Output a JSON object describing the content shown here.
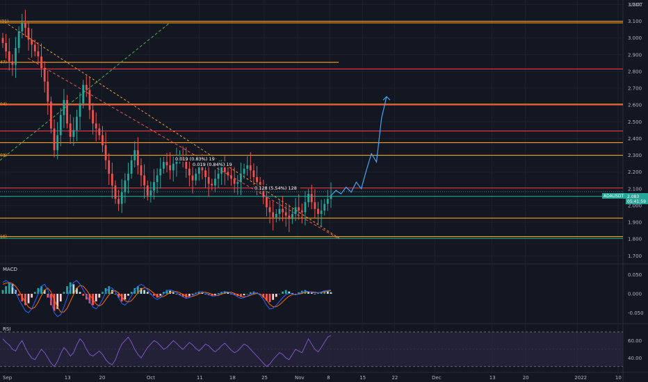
{
  "chart_data": {
    "type": "line",
    "price_axis": {
      "unit": "USDT",
      "ticks": [
        "3.200",
        "3.100",
        "3.000",
        "2.900",
        "2.800",
        "2.700",
        "2.600",
        "2.500",
        "2.400",
        "2.300",
        "2.200",
        "2.100",
        "2.000",
        "1.900",
        "1.800",
        "1.700"
      ],
      "ylim": [
        1.66,
        3.21
      ]
    },
    "time_axis": {
      "ticks": [
        "Sep",
        "13",
        "20",
        "Oct",
        "11",
        "18",
        "25",
        "Nov",
        "8",
        "15",
        "22",
        "Dec",
        "13",
        "20",
        "2022",
        "10"
      ]
    },
    "price_series": {
      "name": "ADAUSDT",
      "last_label": "ADAUSDT",
      "last_value": "2.083",
      "countdown": "05:41:59",
      "values": [
        2.97,
        2.92,
        2.86,
        2.84,
        2.94,
        3.04,
        3.09,
        3.06,
        2.99,
        2.96,
        2.92,
        2.89,
        2.82,
        2.74,
        2.62,
        2.46,
        2.33,
        2.42,
        2.54,
        2.63,
        2.49,
        2.41,
        2.45,
        2.53,
        2.61,
        2.72,
        2.69,
        2.57,
        2.49,
        2.46,
        2.42,
        2.36,
        2.27,
        2.19,
        2.12,
        2.04,
        2.01,
        2.08,
        2.15,
        2.19,
        2.27,
        2.33,
        2.24,
        2.18,
        2.12,
        2.06,
        2.09,
        2.14,
        2.18,
        2.22,
        2.26,
        2.24,
        2.21,
        2.25,
        2.28,
        2.3,
        2.27,
        2.22,
        2.18,
        2.15,
        2.19,
        2.23,
        2.21,
        2.17,
        2.13,
        2.12,
        2.16,
        2.19,
        2.23,
        2.2,
        2.18,
        2.16,
        2.13,
        2.14,
        2.19,
        2.22,
        2.24,
        2.21,
        2.17,
        2.14,
        2.1,
        2.05,
        1.99,
        1.96,
        1.93,
        1.95,
        1.98,
        1.96,
        1.94,
        1.92,
        1.95,
        1.99,
        1.97,
        1.96,
        2.02,
        2.07,
        2.02,
        1.98,
        1.95,
        1.97,
        2.01,
        2.04,
        2.06
      ],
      "projection": [
        2.06,
        2.09,
        2.07,
        2.11,
        2.08,
        2.14,
        2.1,
        2.21,
        2.31,
        2.26,
        2.52,
        2.65
      ]
    },
    "horizontal_levels": [
      {
        "value": 3.1,
        "color": "#f7a21b",
        "tag": "(91)"
      },
      {
        "value": 3.09,
        "color": "#f7a21b",
        "tag": ""
      },
      {
        "value": 2.855,
        "color": "#f7a21b",
        "tag": "47)"
      },
      {
        "value": 2.815,
        "color": "#f23645",
        "tag": ""
      },
      {
        "value": 2.605,
        "color": "#f7a21b",
        "tag": "04)"
      },
      {
        "value": 2.6,
        "color": "#f23645",
        "tag": ""
      },
      {
        "value": 2.445,
        "color": "#f23645",
        "tag": ""
      },
      {
        "value": 2.375,
        "color": "#f7a21b",
        "tag": ""
      },
      {
        "value": 2.3,
        "color": "#f7a21b",
        "tag": "03)"
      },
      {
        "value": 2.105,
        "color": "#f23645",
        "tag": ""
      },
      {
        "value": 2.055,
        "color": "#22ab94",
        "tag": ""
      },
      {
        "value": 1.925,
        "color": "#f7a21b",
        "tag": ""
      },
      {
        "value": 1.815,
        "color": "#f7a21b",
        "tag": "16)"
      },
      {
        "value": 1.805,
        "color": "#22ab94",
        "tag": ""
      }
    ],
    "measure_labels": [
      {
        "text": "0.019 (0.83%) 19"
      },
      {
        "text": "0.019 (0.84%) 19"
      },
      {
        "text": "0.128 (5.54%) 128"
      }
    ],
    "macd": {
      "label": "MACD",
      "ticks": [
        "0.050",
        "0.000",
        "-0.050"
      ],
      "ylim": [
        -0.075,
        0.075
      ],
      "histogram": [
        0.01,
        0.02,
        0.03,
        0.025,
        0.01,
        -0.005,
        -0.02,
        -0.03,
        -0.025,
        -0.01,
        0.005,
        0.015,
        0.02,
        0.01,
        -0.01,
        -0.03,
        -0.045,
        -0.04,
        -0.02,
        0.005,
        0.02,
        0.03,
        0.025,
        0.015,
        0.005,
        -0.005,
        -0.015,
        -0.025,
        -0.03,
        -0.02,
        -0.01,
        0.005,
        0.015,
        0.02,
        0.01,
        0.0,
        -0.01,
        -0.02,
        -0.015,
        -0.005,
        0.005,
        0.015,
        0.02,
        0.015,
        0.01,
        0.005,
        0.0,
        -0.005,
        -0.01,
        -0.005,
        0.005,
        0.01,
        0.008,
        0.004,
        0.0,
        -0.004,
        -0.008,
        -0.01,
        -0.006,
        -0.002,
        0.003,
        0.006,
        0.004,
        0.0,
        -0.004,
        -0.006,
        -0.003,
        0.002,
        0.005,
        0.007,
        0.004,
        0.0,
        -0.003,
        -0.006,
        -0.008,
        -0.004,
        0.0,
        0.004,
        0.006,
        0.003,
        -0.002,
        -0.01,
        -0.018,
        -0.022,
        -0.016,
        -0.008,
        0.0,
        0.006,
        0.01,
        0.006,
        0.002,
        -0.002,
        0.004,
        0.008,
        0.01,
        0.006,
        0.003,
        0.0,
        0.002,
        0.005,
        0.007,
        0.006,
        0.004
      ],
      "macd_line": [
        0.03,
        0.035,
        0.03,
        0.02,
        0.005,
        -0.015,
        -0.03,
        -0.045,
        -0.05,
        -0.04,
        -0.02,
        0.0,
        0.02,
        0.025,
        0.01,
        -0.02,
        -0.05,
        -0.06,
        -0.055,
        -0.035,
        -0.01,
        0.015,
        0.03,
        0.035,
        0.025,
        0.01,
        -0.005,
        -0.02,
        -0.035,
        -0.04,
        -0.03,
        -0.015,
        0.005,
        0.015,
        0.015,
        0.005,
        -0.01,
        -0.025,
        -0.03,
        -0.02,
        -0.005,
        0.01,
        0.02,
        0.025,
        0.02,
        0.01,
        0.0,
        -0.01,
        -0.015,
        -0.01,
        0.0,
        0.008,
        0.01,
        0.008,
        0.003,
        -0.003,
        -0.008,
        -0.012,
        -0.01,
        -0.005,
        0.0,
        0.005,
        0.006,
        0.003,
        -0.002,
        -0.006,
        -0.006,
        -0.002,
        0.003,
        0.006,
        0.005,
        0.001,
        -0.003,
        -0.008,
        -0.012,
        -0.01,
        -0.006,
        -0.001,
        0.003,
        0.002,
        -0.004,
        -0.015,
        -0.03,
        -0.04,
        -0.038,
        -0.03,
        -0.02,
        -0.01,
        -0.002,
        0.001,
        0.0,
        -0.003,
        0.0,
        0.004,
        0.007,
        0.006,
        0.004,
        0.002,
        0.003,
        0.005,
        0.008,
        0.009,
        0.01
      ],
      "signal_line": [
        0.025,
        0.028,
        0.03,
        0.027,
        0.02,
        0.008,
        -0.008,
        -0.022,
        -0.035,
        -0.04,
        -0.035,
        -0.022,
        -0.005,
        0.01,
        0.015,
        0.005,
        -0.015,
        -0.035,
        -0.048,
        -0.048,
        -0.038,
        -0.02,
        -0.002,
        0.015,
        0.022,
        0.02,
        0.01,
        -0.002,
        -0.015,
        -0.027,
        -0.032,
        -0.027,
        -0.015,
        -0.003,
        0.006,
        0.008,
        0.002,
        -0.008,
        -0.018,
        -0.022,
        -0.018,
        -0.008,
        0.003,
        0.012,
        0.016,
        0.014,
        0.008,
        0.001,
        -0.006,
        -0.009,
        -0.007,
        -0.002,
        0.003,
        0.006,
        0.006,
        0.003,
        -0.002,
        -0.006,
        -0.008,
        -0.007,
        -0.004,
        0.0,
        0.003,
        0.004,
        0.002,
        -0.001,
        -0.004,
        -0.004,
        -0.001,
        0.002,
        0.004,
        0.004,
        0.001,
        -0.003,
        -0.007,
        -0.008,
        -0.007,
        -0.004,
        -0.001,
        0.001,
        -0.001,
        -0.007,
        -0.017,
        -0.028,
        -0.034,
        -0.034,
        -0.029,
        -0.021,
        -0.013,
        -0.006,
        -0.002,
        -0.002,
        -0.001,
        0.001,
        0.004,
        0.005,
        0.005,
        0.004,
        0.003,
        0.004,
        0.005,
        0.007,
        0.008
      ]
    },
    "rsi": {
      "label": "RSI",
      "ticks": [
        "60.00",
        "40.00"
      ],
      "ylim": [
        25,
        78
      ],
      "upper_band": 70,
      "lower_band": 30,
      "values": [
        62,
        58,
        55,
        50,
        48,
        55,
        60,
        52,
        45,
        40,
        38,
        44,
        50,
        46,
        40,
        34,
        30,
        36,
        45,
        52,
        48,
        42,
        46,
        55,
        62,
        58,
        50,
        44,
        42,
        45,
        48,
        44,
        38,
        34,
        32,
        38,
        48,
        56,
        60,
        64,
        58,
        50,
        44,
        40,
        46,
        52,
        56,
        60,
        58,
        54,
        50,
        52,
        56,
        60,
        57,
        53,
        50,
        54,
        58,
        55,
        51,
        48,
        52,
        56,
        54,
        50,
        47,
        50,
        54,
        57,
        53,
        49,
        46,
        48,
        52,
        56,
        54,
        50,
        46,
        42,
        38,
        34,
        30,
        33,
        38,
        42,
        46,
        44,
        40,
        38,
        44,
        50,
        48,
        46,
        54,
        62,
        56,
        50,
        47,
        52,
        58,
        64,
        66
      ]
    }
  },
  "colors": {
    "background": "#131722",
    "grid": "#1e222d",
    "bull": "#26a69a",
    "bear": "#ef5350",
    "projection": "#42a5f5",
    "macd_line": "#2962ff",
    "signal_line": "#ff6d00",
    "rsi_line": "#7e57c2",
    "rsi_band": "#2a2640",
    "trendline": "#ef5350",
    "green_dashed": "#4caf50",
    "last_price_tag": "#26a69a"
  }
}
